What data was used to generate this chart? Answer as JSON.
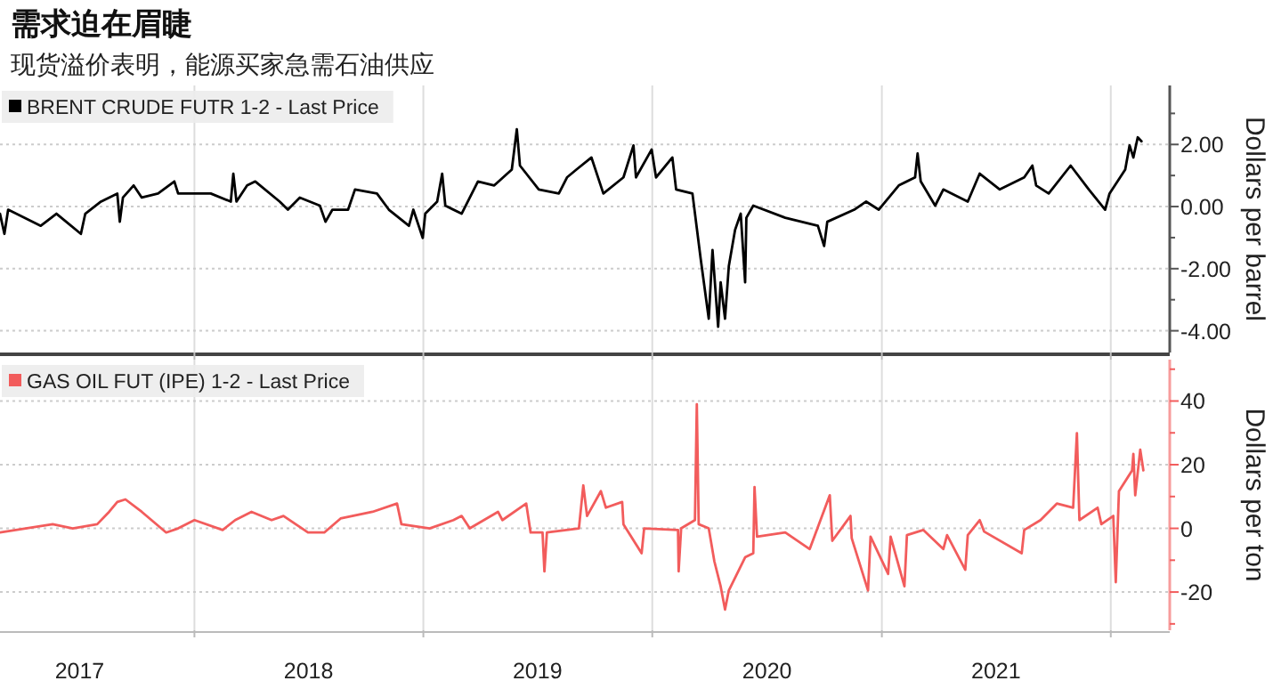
{
  "chart_data": [
    {
      "type": "line",
      "title": "需求迫在眉睫",
      "subtitle": "现货溢价表明，能源买家急需石油供应",
      "ylabel": "Dollars per barrel",
      "legend": "top left",
      "grid": true,
      "tick_labels": "y",
      "xlim": [
        "2017-02-25",
        "2022-04-05"
      ],
      "xticks": [
        {
          "value": "2018-01-01",
          "label": null
        },
        {
          "value": "2019-01-01",
          "label": null
        },
        {
          "value": "2020-01-01",
          "label": null
        },
        {
          "value": "2021-01-01",
          "label": null
        },
        {
          "value": "2022-01-01",
          "label": null
        }
      ],
      "ylim": [
        -4.7,
        3.9
      ],
      "yticks": [
        {
          "value": -4,
          "label": "-4.00"
        },
        {
          "value": -3,
          "label": null
        },
        {
          "value": -2,
          "label": "-2.00"
        },
        {
          "value": -1,
          "label": null
        },
        {
          "value": 0,
          "label": "0.00"
        },
        {
          "value": 1,
          "label": null
        },
        {
          "value": 2,
          "label": "2.00"
        },
        {
          "value": 3,
          "label": null
        }
      ],
      "series": [
        {
          "name": "BRENT CRUDE FUTR 1-2 - Last Price",
          "color": "#000000",
          "x": [
            "2017-02-25",
            "2017-03-04",
            "2017-03-10",
            "2017-05-01",
            "2017-05-26",
            "2017-07-04",
            "2017-07-11",
            "2017-08-05",
            "2017-08-31",
            "2017-09-04",
            "2017-09-09",
            "2017-09-26",
            "2017-10-09",
            "2017-11-04",
            "2017-11-30",
            "2017-12-06",
            "2018-01-27",
            "2018-02-28",
            "2018-03-04",
            "2018-03-09",
            "2018-03-26",
            "2018-04-08",
            "2018-05-17",
            "2018-05-30",
            "2018-06-18",
            "2018-07-20",
            "2018-07-29",
            "2018-08-09",
            "2018-09-03",
            "2018-09-14",
            "2018-10-19",
            "2018-11-07",
            "2018-12-09",
            "2018-12-16",
            "2018-12-31",
            "2019-01-04",
            "2019-01-23",
            "2019-01-31",
            "2019-02-05",
            "2019-03-03",
            "2019-03-29",
            "2019-04-24",
            "2019-05-22",
            "2019-05-30",
            "2019-06-04",
            "2019-07-04",
            "2019-08-05",
            "2019-08-18",
            "2019-09-02",
            "2019-09-26",
            "2019-10-15",
            "2019-11-16",
            "2019-12-02",
            "2019-12-06",
            "2019-12-31",
            "2020-01-07",
            "2020-02-02",
            "2020-02-08",
            "2020-03-05",
            "2020-03-18",
            "2020-03-31",
            "2020-04-06",
            "2020-04-15",
            "2020-04-19",
            "2020-04-26",
            "2020-05-02",
            "2020-05-12",
            "2020-05-21",
            "2020-05-28",
            "2020-05-30",
            "2020-06-10",
            "2020-07-31",
            "2020-09-21",
            "2020-10-01",
            "2020-10-06",
            "2020-11-18",
            "2020-12-07",
            "2020-12-27",
            "2021-01-28",
            "2021-02-23",
            "2021-02-27",
            "2021-03-04",
            "2021-03-27",
            "2021-04-09",
            "2021-05-18",
            "2021-06-06",
            "2021-07-08",
            "2021-08-16",
            "2021-08-29",
            "2021-09-04",
            "2021-09-24",
            "2021-10-29",
            "2021-11-27",
            "2021-12-23",
            "2021-12-30",
            "2022-01-24",
            "2022-01-31",
            "2022-02-06",
            "2022-02-13",
            "2022-02-19"
          ],
          "values": [
            -0.23,
            -0.88,
            -0.1,
            -0.62,
            -0.23,
            -0.88,
            -0.23,
            0.16,
            0.42,
            -0.49,
            0.29,
            0.68,
            0.29,
            0.42,
            0.81,
            0.42,
            0.42,
            0.16,
            1.06,
            0.16,
            0.68,
            0.81,
            0.16,
            -0.1,
            0.29,
            0.03,
            -0.49,
            -0.1,
            -0.1,
            0.55,
            0.42,
            -0.1,
            -0.62,
            -0.1,
            -1.01,
            -0.23,
            0.16,
            1.06,
            0.03,
            -0.23,
            0.81,
            0.68,
            1.19,
            2.49,
            1.32,
            0.55,
            0.42,
            0.94,
            1.19,
            1.58,
            0.42,
            0.94,
            1.97,
            0.94,
            1.84,
            0.94,
            1.58,
            0.55,
            0.42,
            -1.66,
            -3.61,
            -1.4,
            -3.87,
            -2.44,
            -3.61,
            -1.92,
            -0.75,
            -0.23,
            -2.44,
            -0.36,
            0.03,
            -0.36,
            -0.62,
            -1.27,
            -0.49,
            -0.1,
            0.16,
            -0.1,
            0.68,
            0.94,
            1.71,
            0.81,
            0.03,
            0.55,
            0.16,
            1.06,
            0.55,
            0.94,
            1.32,
            0.68,
            0.42,
            1.32,
            0.55,
            -0.1,
            0.42,
            1.19,
            1.97,
            1.58,
            2.23,
            2.1
          ]
        }
      ]
    },
    {
      "type": "line",
      "ylabel": "Dollars per ton",
      "legend": "top left",
      "grid": true,
      "xlim": [
        "2017-02-25",
        "2022-04-05"
      ],
      "xticks": [
        {
          "value": "2017-07-02",
          "label": "2017"
        },
        {
          "value": "2018-01-01",
          "label": null
        },
        {
          "value": "2018-07-02",
          "label": "2018"
        },
        {
          "value": "2019-01-01",
          "label": null
        },
        {
          "value": "2019-07-02",
          "label": "2019"
        },
        {
          "value": "2020-01-01",
          "label": null
        },
        {
          "value": "2020-07-02",
          "label": "2020"
        },
        {
          "value": "2021-01-01",
          "label": null
        },
        {
          "value": "2021-07-02",
          "label": "2021"
        },
        {
          "value": "2022-01-01",
          "label": null
        }
      ],
      "ylim": [
        -32,
        53
      ],
      "yticks": [
        {
          "value": -30,
          "label": null
        },
        -20,
        {
          "value": -10,
          "label": null
        },
        0,
        {
          "value": 10,
          "label": null
        },
        20,
        {
          "value": 30,
          "label": null
        },
        40,
        {
          "value": 50,
          "label": null
        }
      ],
      "series": [
        {
          "name": "GAS OIL FUT (IPE) 1-2 - Last Price",
          "color": "#f25c5c",
          "x": [
            "2017-02-25",
            "2017-05-20",
            "2017-06-21",
            "2017-07-30",
            "2017-08-18",
            "2017-08-31",
            "2017-09-13",
            "2017-10-09",
            "2017-11-17",
            "2017-12-06",
            "2018-01-01",
            "2018-02-15",
            "2018-03-07",
            "2018-04-02",
            "2018-05-04",
            "2018-05-23",
            "2018-07-01",
            "2018-07-27",
            "2018-08-22",
            "2018-10-12",
            "2018-11-20",
            "2018-11-27",
            "2019-01-11",
            "2019-02-18",
            "2019-03-03",
            "2019-03-16",
            "2019-04-30",
            "2019-05-07",
            "2019-06-14",
            "2019-06-21",
            "2019-07-10",
            "2019-07-13",
            "2019-07-17",
            "2019-09-06",
            "2019-09-13",
            "2019-09-19",
            "2019-10-11",
            "2019-10-19",
            "2019-11-14",
            "2019-11-16",
            "2019-12-15",
            "2019-12-19",
            "2020-02-11",
            "2020-02-12",
            "2020-02-16",
            "2020-03-09",
            "2020-03-12",
            "2020-03-15",
            "2020-03-31",
            "2020-04-09",
            "2020-04-19",
            "2020-04-26",
            "2020-05-02",
            "2020-05-28",
            "2020-06-10",
            "2020-06-12",
            "2020-06-16",
            "2020-07-31",
            "2020-09-08",
            "2020-10-10",
            "2020-10-14",
            "2020-11-12",
            "2020-11-14",
            "2020-12-10",
            "2020-12-14",
            "2021-01-11",
            "2021-01-15",
            "2021-02-06",
            "2021-02-10",
            "2021-03-08",
            "2021-04-09",
            "2021-04-15",
            "2021-05-14",
            "2021-05-18",
            "2021-06-06",
            "2021-06-13",
            "2021-08-12",
            "2021-08-16",
            "2021-09-11",
            "2021-10-07",
            "2021-11-02",
            "2021-11-08",
            "2021-11-12",
            "2021-12-11",
            "2021-12-17",
            "2022-01-05",
            "2022-01-09",
            "2022-01-14",
            "2022-02-04",
            "2022-02-06",
            "2022-02-09",
            "2022-02-17",
            "2022-02-22"
          ],
          "values": [
            -1.3,
            1.3,
            0,
            1.3,
            5.2,
            8.3,
            9.1,
            5.2,
            -1.3,
            0,
            2.6,
            -0.5,
            2.6,
            5.2,
            2.6,
            3.9,
            -1.3,
            -1.3,
            3.1,
            5.2,
            7.8,
            1.3,
            0,
            2.6,
            3.9,
            0,
            5.2,
            2.6,
            7.8,
            -1.3,
            -1.3,
            -13.5,
            -1.3,
            0,
            13.5,
            3.9,
            11.7,
            6.5,
            8.3,
            1.3,
            -7.8,
            0,
            -0.5,
            -13.5,
            0,
            2.6,
            39,
            1.3,
            0,
            -10.4,
            -18.2,
            -25.5,
            -19.5,
            -9.1,
            -7.8,
            13,
            -2.6,
            -1.3,
            -6.5,
            10.4,
            -3.9,
            3.9,
            -3.1,
            -19.5,
            -2.6,
            -14.3,
            -2.6,
            -18.2,
            -2.1,
            -0.5,
            -6.5,
            -2.1,
            -13,
            -2.1,
            2.6,
            -1,
            -7.8,
            -0.5,
            2.6,
            7.8,
            6.5,
            29.9,
            2.6,
            6.5,
            1.3,
            3.9,
            -16.9,
            11.7,
            18.2,
            23.4,
            10.4,
            24.7,
            18.2
          ]
        }
      ]
    }
  ]
}
